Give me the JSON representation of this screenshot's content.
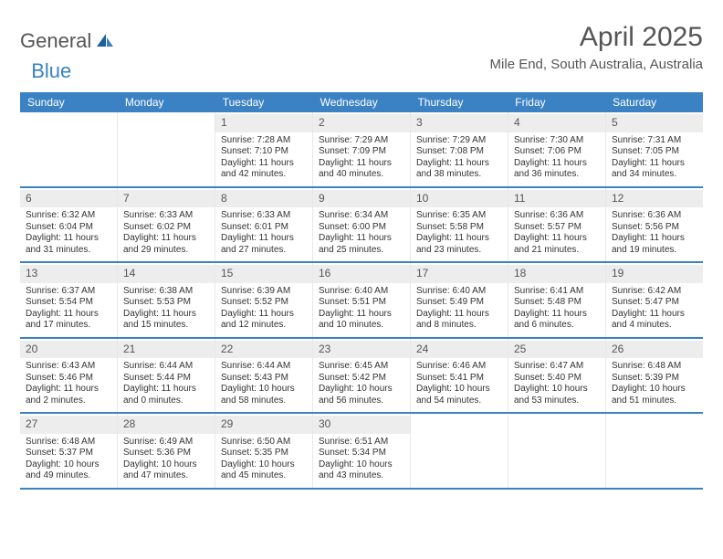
{
  "brand": {
    "part1": "General",
    "part2": "Blue"
  },
  "title": "April 2025",
  "location": "Mile End, South Australia, Australia",
  "colors": {
    "header_bg": "#3b82c4",
    "header_text": "#ffffff",
    "daynum_bg": "#ededed",
    "row_border": "#3b82c4",
    "text": "#333333",
    "muted": "#555555"
  },
  "dayHeaders": [
    "Sunday",
    "Monday",
    "Tuesday",
    "Wednesday",
    "Thursday",
    "Friday",
    "Saturday"
  ],
  "weeks": [
    [
      {
        "empty": true
      },
      {
        "empty": true
      },
      {
        "num": "1",
        "sunrise": "Sunrise: 7:28 AM",
        "sunset": "Sunset: 7:10 PM",
        "daylight": "Daylight: 11 hours and 42 minutes."
      },
      {
        "num": "2",
        "sunrise": "Sunrise: 7:29 AM",
        "sunset": "Sunset: 7:09 PM",
        "daylight": "Daylight: 11 hours and 40 minutes."
      },
      {
        "num": "3",
        "sunrise": "Sunrise: 7:29 AM",
        "sunset": "Sunset: 7:08 PM",
        "daylight": "Daylight: 11 hours and 38 minutes."
      },
      {
        "num": "4",
        "sunrise": "Sunrise: 7:30 AM",
        "sunset": "Sunset: 7:06 PM",
        "daylight": "Daylight: 11 hours and 36 minutes."
      },
      {
        "num": "5",
        "sunrise": "Sunrise: 7:31 AM",
        "sunset": "Sunset: 7:05 PM",
        "daylight": "Daylight: 11 hours and 34 minutes."
      }
    ],
    [
      {
        "num": "6",
        "sunrise": "Sunrise: 6:32 AM",
        "sunset": "Sunset: 6:04 PM",
        "daylight": "Daylight: 11 hours and 31 minutes."
      },
      {
        "num": "7",
        "sunrise": "Sunrise: 6:33 AM",
        "sunset": "Sunset: 6:02 PM",
        "daylight": "Daylight: 11 hours and 29 minutes."
      },
      {
        "num": "8",
        "sunrise": "Sunrise: 6:33 AM",
        "sunset": "Sunset: 6:01 PM",
        "daylight": "Daylight: 11 hours and 27 minutes."
      },
      {
        "num": "9",
        "sunrise": "Sunrise: 6:34 AM",
        "sunset": "Sunset: 6:00 PM",
        "daylight": "Daylight: 11 hours and 25 minutes."
      },
      {
        "num": "10",
        "sunrise": "Sunrise: 6:35 AM",
        "sunset": "Sunset: 5:58 PM",
        "daylight": "Daylight: 11 hours and 23 minutes."
      },
      {
        "num": "11",
        "sunrise": "Sunrise: 6:36 AM",
        "sunset": "Sunset: 5:57 PM",
        "daylight": "Daylight: 11 hours and 21 minutes."
      },
      {
        "num": "12",
        "sunrise": "Sunrise: 6:36 AM",
        "sunset": "Sunset: 5:56 PM",
        "daylight": "Daylight: 11 hours and 19 minutes."
      }
    ],
    [
      {
        "num": "13",
        "sunrise": "Sunrise: 6:37 AM",
        "sunset": "Sunset: 5:54 PM",
        "daylight": "Daylight: 11 hours and 17 minutes."
      },
      {
        "num": "14",
        "sunrise": "Sunrise: 6:38 AM",
        "sunset": "Sunset: 5:53 PM",
        "daylight": "Daylight: 11 hours and 15 minutes."
      },
      {
        "num": "15",
        "sunrise": "Sunrise: 6:39 AM",
        "sunset": "Sunset: 5:52 PM",
        "daylight": "Daylight: 11 hours and 12 minutes."
      },
      {
        "num": "16",
        "sunrise": "Sunrise: 6:40 AM",
        "sunset": "Sunset: 5:51 PM",
        "daylight": "Daylight: 11 hours and 10 minutes."
      },
      {
        "num": "17",
        "sunrise": "Sunrise: 6:40 AM",
        "sunset": "Sunset: 5:49 PM",
        "daylight": "Daylight: 11 hours and 8 minutes."
      },
      {
        "num": "18",
        "sunrise": "Sunrise: 6:41 AM",
        "sunset": "Sunset: 5:48 PM",
        "daylight": "Daylight: 11 hours and 6 minutes."
      },
      {
        "num": "19",
        "sunrise": "Sunrise: 6:42 AM",
        "sunset": "Sunset: 5:47 PM",
        "daylight": "Daylight: 11 hours and 4 minutes."
      }
    ],
    [
      {
        "num": "20",
        "sunrise": "Sunrise: 6:43 AM",
        "sunset": "Sunset: 5:46 PM",
        "daylight": "Daylight: 11 hours and 2 minutes."
      },
      {
        "num": "21",
        "sunrise": "Sunrise: 6:44 AM",
        "sunset": "Sunset: 5:44 PM",
        "daylight": "Daylight: 11 hours and 0 minutes."
      },
      {
        "num": "22",
        "sunrise": "Sunrise: 6:44 AM",
        "sunset": "Sunset: 5:43 PM",
        "daylight": "Daylight: 10 hours and 58 minutes."
      },
      {
        "num": "23",
        "sunrise": "Sunrise: 6:45 AM",
        "sunset": "Sunset: 5:42 PM",
        "daylight": "Daylight: 10 hours and 56 minutes."
      },
      {
        "num": "24",
        "sunrise": "Sunrise: 6:46 AM",
        "sunset": "Sunset: 5:41 PM",
        "daylight": "Daylight: 10 hours and 54 minutes."
      },
      {
        "num": "25",
        "sunrise": "Sunrise: 6:47 AM",
        "sunset": "Sunset: 5:40 PM",
        "daylight": "Daylight: 10 hours and 53 minutes."
      },
      {
        "num": "26",
        "sunrise": "Sunrise: 6:48 AM",
        "sunset": "Sunset: 5:39 PM",
        "daylight": "Daylight: 10 hours and 51 minutes."
      }
    ],
    [
      {
        "num": "27",
        "sunrise": "Sunrise: 6:48 AM",
        "sunset": "Sunset: 5:37 PM",
        "daylight": "Daylight: 10 hours and 49 minutes."
      },
      {
        "num": "28",
        "sunrise": "Sunrise: 6:49 AM",
        "sunset": "Sunset: 5:36 PM",
        "daylight": "Daylight: 10 hours and 47 minutes."
      },
      {
        "num": "29",
        "sunrise": "Sunrise: 6:50 AM",
        "sunset": "Sunset: 5:35 PM",
        "daylight": "Daylight: 10 hours and 45 minutes."
      },
      {
        "num": "30",
        "sunrise": "Sunrise: 6:51 AM",
        "sunset": "Sunset: 5:34 PM",
        "daylight": "Daylight: 10 hours and 43 minutes."
      },
      {
        "empty": true
      },
      {
        "empty": true
      },
      {
        "empty": true
      }
    ]
  ]
}
